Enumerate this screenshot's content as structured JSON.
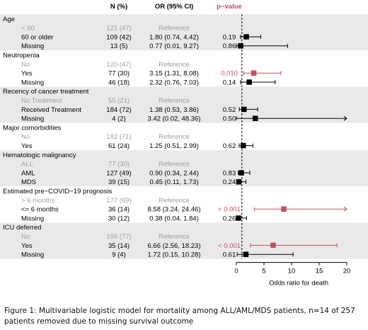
{
  "headers": {
    "n": "N (%)",
    "or": "OR (95% CI)",
    "p": "p−value"
  },
  "colors": {
    "band": "#e9e9e9",
    "significant": "#c0505e",
    "normal": "#000000",
    "reference": "#a0a0a0"
  },
  "caption": "Figure 1: Multivariable logistic model for mortality among ALL/AML/MDS patients, n=14 of 257 patients removed due to missing survival outcome",
  "groups": [
    {
      "title": "Age",
      "rows": [
        {
          "label": "< 60",
          "n": "121 (47)",
          "or": "Reference",
          "p": "",
          "ref": true
        },
        {
          "label": "60 or older",
          "n": "109 (42)",
          "or": "1.80 (0.74, 4.42)",
          "p": "0.19"
        },
        {
          "label": "Missing",
          "n": "13 (5)",
          "or": "0.77 (0.01, 9.27)",
          "p": "0.86"
        }
      ]
    },
    {
      "title": "Neutropenia",
      "rows": [
        {
          "label": "No",
          "n": "120 (47)",
          "or": "Reference",
          "p": "",
          "ref": true
        },
        {
          "label": "Yes",
          "n": "77 (30)",
          "or": "3.15 (1.31, 8.08)",
          "p": "0.010",
          "sig": true
        },
        {
          "label": "Missing",
          "n": "46 (18)",
          "or": "2.32 (0.76, 7.03)",
          "p": "0.14"
        }
      ]
    },
    {
      "title": "Recency of cancer treatment",
      "rows": [
        {
          "label": "No Treatment",
          "n": "55 (21)",
          "or": "Reference",
          "p": "",
          "ref": true
        },
        {
          "label": "Received Treatment",
          "n": "184 (72)",
          "or": "1.38 (0.53, 3.86)",
          "p": "0.52"
        },
        {
          "label": "Missing",
          "n": "4 (2)",
          "or": "3.42 (0.02, 48.36)",
          "p": "0.50"
        }
      ]
    },
    {
      "title": "Major comorbidities",
      "rows": [
        {
          "label": "No",
          "n": "182 (71)",
          "or": "Reference",
          "p": "",
          "ref": true
        },
        {
          "label": "Yes",
          "n": "61 (24)",
          "or": "1.25 (0.51, 2.99)",
          "p": "0.62"
        }
      ]
    },
    {
      "title": "Hematologic malignancy",
      "rows": [
        {
          "label": "ALL",
          "n": "77 (30)",
          "or": "Reference",
          "p": "",
          "ref": true
        },
        {
          "label": "AML",
          "n": "127 (49)",
          "or": "0.90 (0.34, 2.44)",
          "p": "0.83"
        },
        {
          "label": "MDS",
          "n": "39 (15)",
          "or": "0.45 (0.11, 1.73)",
          "p": "0.24"
        }
      ]
    },
    {
      "title": "Estimated pre−COVID−19 prognosis",
      "rows": [
        {
          "label": "> 6 months",
          "n": "177 (69)",
          "or": "Reference",
          "p": "",
          "ref": true
        },
        {
          "label": "<= 6 months",
          "n": "36 (14)",
          "or": "8.58 (3.24, 24.46)",
          "p": "< 0.001",
          "sig": true
        },
        {
          "label": "Missing",
          "n": "30 (12)",
          "or": "0.38 (0.04, 1.84)",
          "p": "0.26"
        }
      ]
    },
    {
      "title": "ICU deferred",
      "rows": [
        {
          "label": "No",
          "n": "199 (77)",
          "or": "Reference",
          "p": "",
          "ref": true
        },
        {
          "label": "Yes",
          "n": "35 (14)",
          "or": "6.66 (2.56, 18.23)",
          "p": "< 0.001",
          "sig": true
        },
        {
          "label": "Missing",
          "n": "9 (4)",
          "or": "1.72 (0.15, 10.28)",
          "p": "0.61"
        }
      ]
    }
  ],
  "chart_data": {
    "type": "scatter",
    "title": "",
    "xlabel": "Odds ratio for death",
    "xlim": [
      0,
      20
    ],
    "xticks": [
      0,
      5,
      10,
      15,
      20
    ],
    "reference_line": 1,
    "series": [
      {
        "values": [
          {
            "row": "Age: 60 or older",
            "or": 1.8,
            "lo": 0.74,
            "hi": 4.42,
            "sig": false
          },
          {
            "row": "Age: Missing",
            "or": 0.77,
            "lo": 0.01,
            "hi": 9.27,
            "sig": false
          },
          {
            "row": "Neutropenia: Yes",
            "or": 3.15,
            "lo": 1.31,
            "hi": 8.08,
            "sig": true
          },
          {
            "row": "Neutropenia: Missing",
            "or": 2.32,
            "lo": 0.76,
            "hi": 7.03,
            "sig": false
          },
          {
            "row": "Recency: Received Treatment",
            "or": 1.38,
            "lo": 0.53,
            "hi": 3.86,
            "sig": false
          },
          {
            "row": "Recency: Missing",
            "or": 3.42,
            "lo": 0.02,
            "hi": 48.36,
            "sig": false
          },
          {
            "row": "Comorbidities: Yes",
            "or": 1.25,
            "lo": 0.51,
            "hi": 2.99,
            "sig": false
          },
          {
            "row": "Malignancy: AML",
            "or": 0.9,
            "lo": 0.34,
            "hi": 2.44,
            "sig": false
          },
          {
            "row": "Malignancy: MDS",
            "or": 0.45,
            "lo": 0.11,
            "hi": 1.73,
            "sig": false
          },
          {
            "row": "Prognosis: <= 6 months",
            "or": 8.58,
            "lo": 3.24,
            "hi": 24.46,
            "sig": true
          },
          {
            "row": "Prognosis: Missing",
            "or": 0.38,
            "lo": 0.04,
            "hi": 1.84,
            "sig": false
          },
          {
            "row": "ICU deferred: Yes",
            "or": 6.66,
            "lo": 2.56,
            "hi": 18.23,
            "sig": true
          },
          {
            "row": "ICU deferred: Missing",
            "or": 1.72,
            "lo": 0.15,
            "hi": 10.28,
            "sig": false
          }
        ]
      }
    ]
  }
}
